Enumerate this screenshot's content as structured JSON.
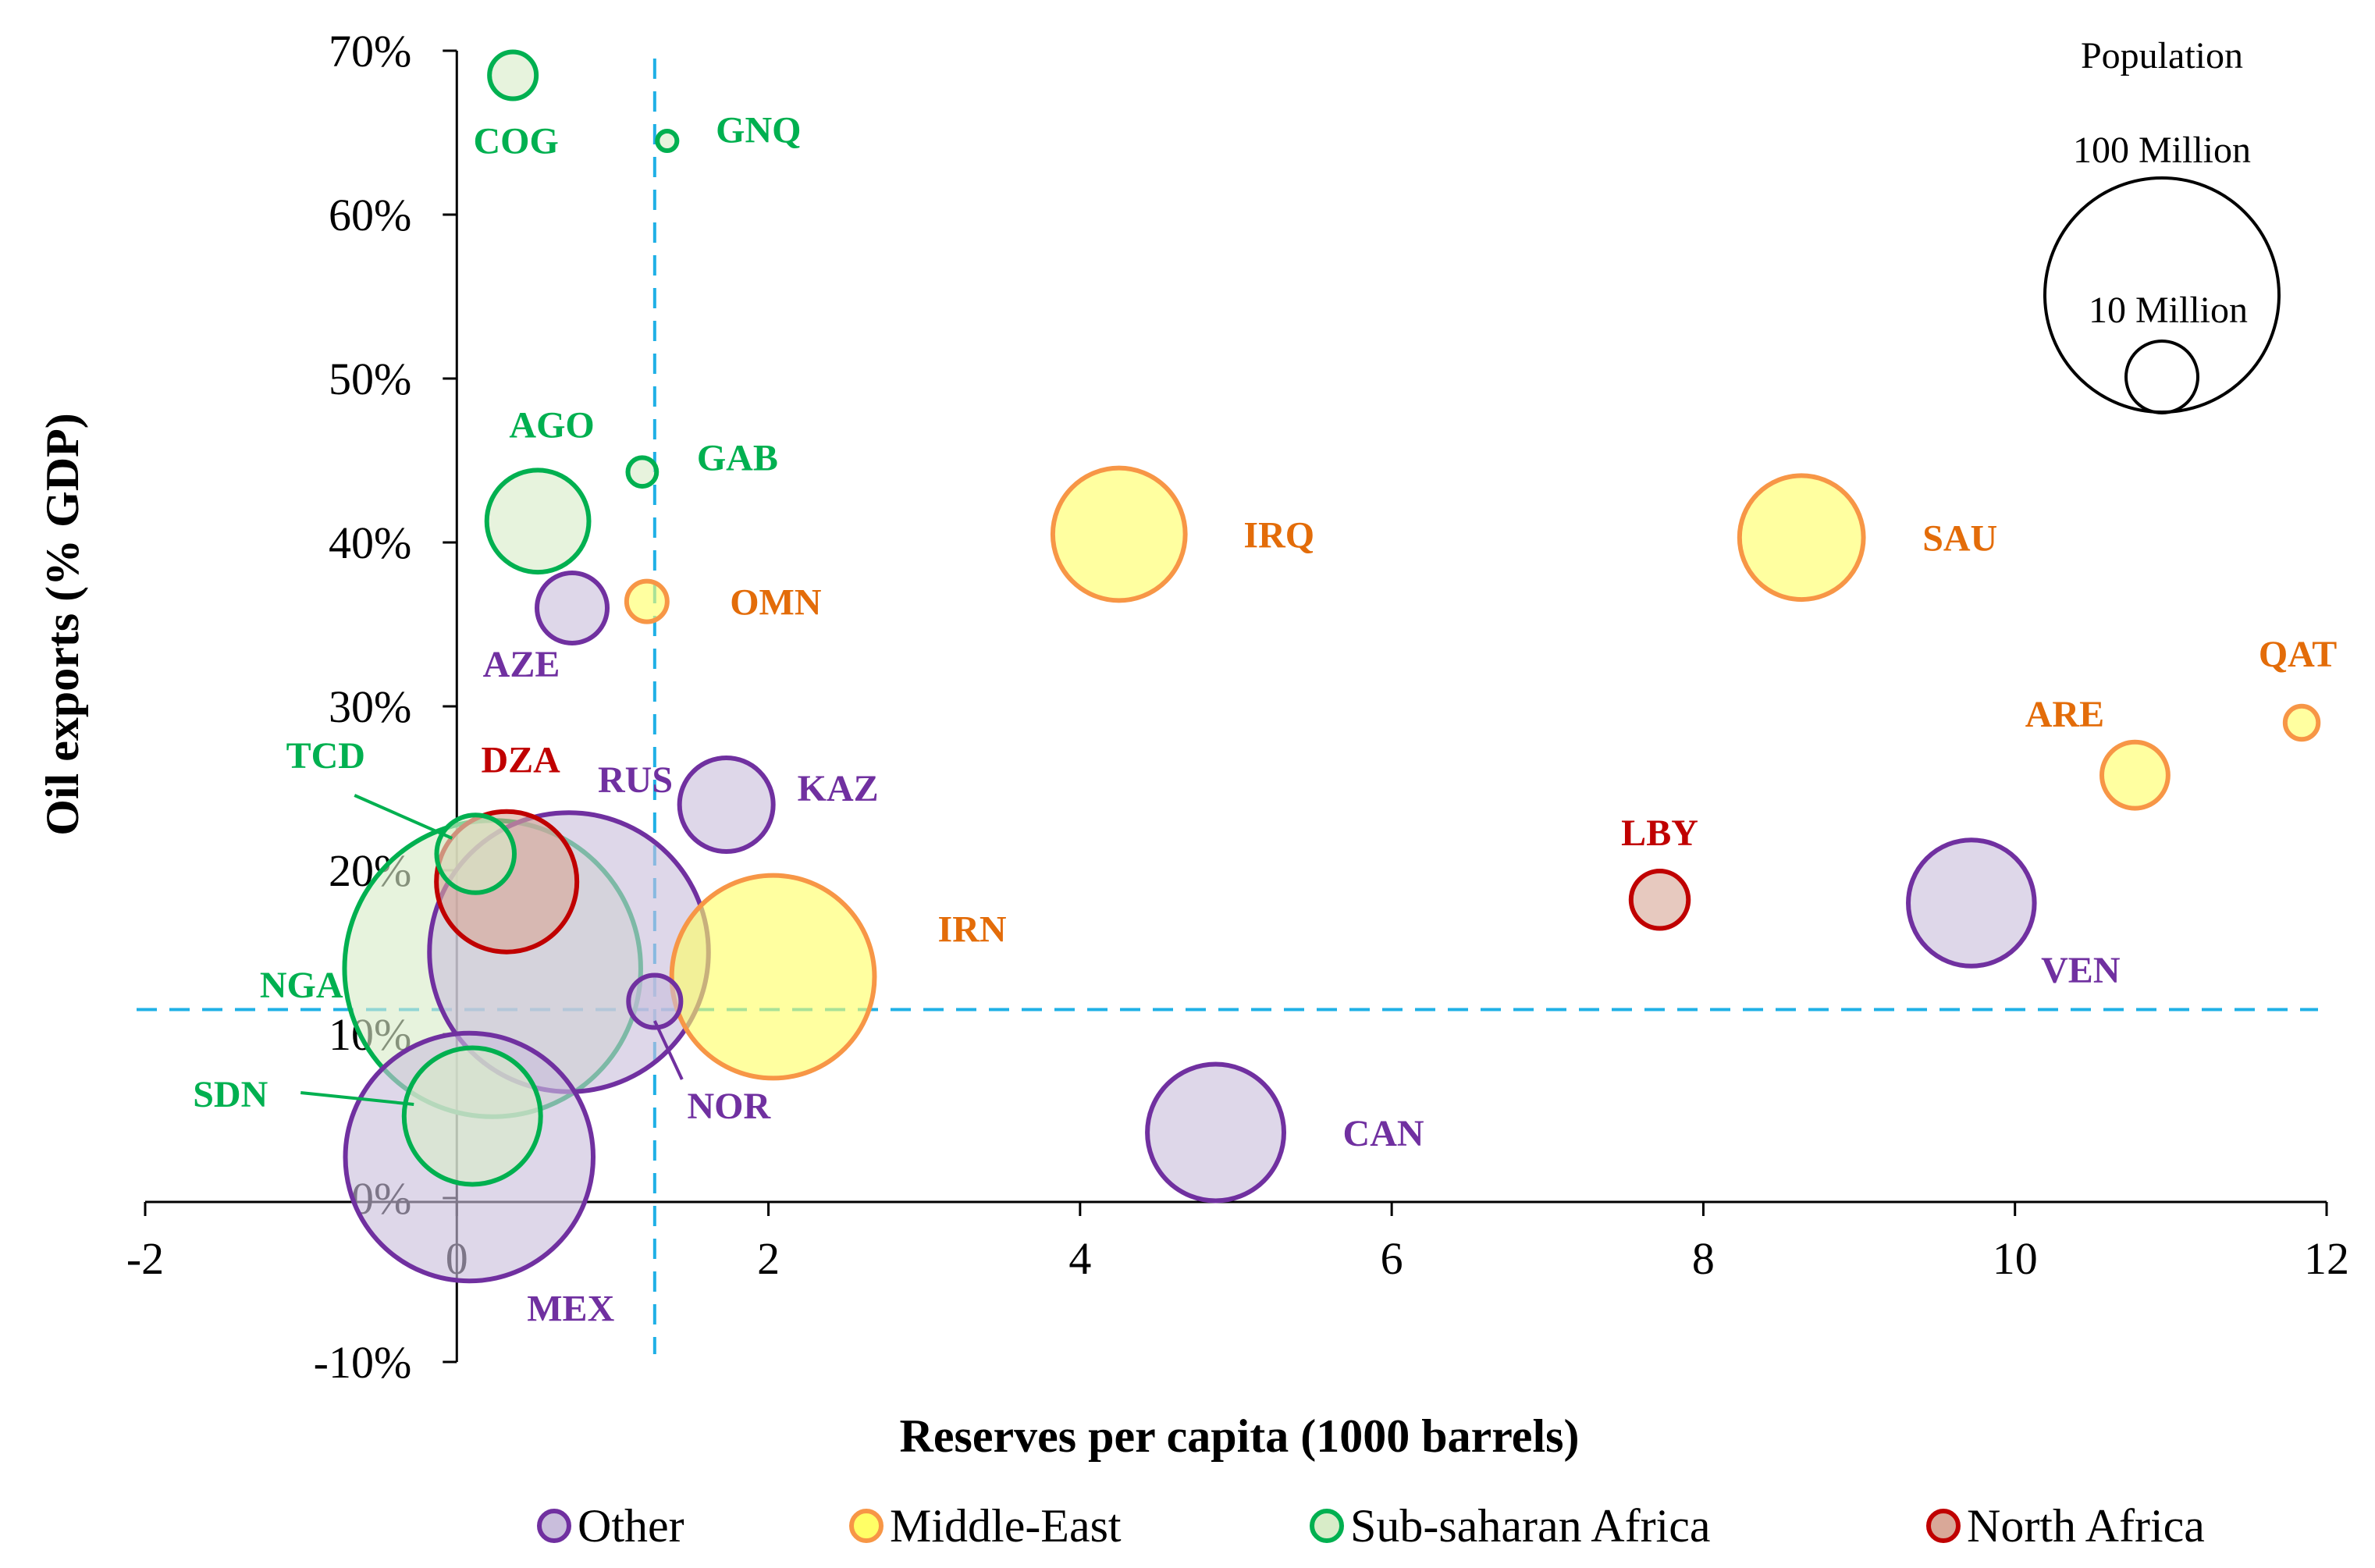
{
  "chart_data": {
    "type": "scatter",
    "subtype": "bubble",
    "title": "",
    "xlabel": "Reserves per capita (1000 barrels)",
    "ylabel": "Oil exports (% GDP)",
    "xlim": [
      -2,
      12
    ],
    "ylim": [
      -10,
      70
    ],
    "x_ticks": [
      -2,
      0,
      2,
      4,
      6,
      8,
      10,
      12
    ],
    "y_ticks": [
      -10,
      0,
      10,
      20,
      30,
      40,
      50,
      60,
      70
    ],
    "x_tick_labels": [
      "-2",
      "0",
      "2",
      "4",
      "6",
      "8",
      "10",
      "12"
    ],
    "y_tick_labels": [
      "-10%",
      "0%",
      "10%",
      "20%",
      "30%",
      "40%",
      "50%",
      "60%",
      "70%"
    ],
    "reference_lines": {
      "vertical_x": 1.27,
      "horizontal_y": 11.5,
      "style": "dashed",
      "color": "#1fb0e6"
    },
    "series": [
      {
        "name": "Other",
        "stroke": "#7030a0",
        "fill": "#c9bedc",
        "label_color": "#7030a0",
        "points": [
          {
            "label": "MEX",
            "x": 0.08,
            "y": 2.5,
            "population_m": 112
          },
          {
            "label": "RUS",
            "x": 0.72,
            "y": 15.0,
            "population_m": 142
          },
          {
            "label": "NOR",
            "x": 1.27,
            "y": 12.0,
            "population_m": 5
          },
          {
            "label": "AZE",
            "x": 0.74,
            "y": 36.0,
            "population_m": 9
          },
          {
            "label": "KAZ",
            "x": 1.73,
            "y": 24.0,
            "population_m": 16
          },
          {
            "label": "CAN",
            "x": 4.87,
            "y": 4.0,
            "population_m": 34
          },
          {
            "label": "VEN",
            "x": 9.72,
            "y": 18.0,
            "population_m": 29
          }
        ]
      },
      {
        "name": "Middle-East",
        "stroke": "#f79646",
        "fill": "#ffff66",
        "label_color": "#e36c09",
        "points": [
          {
            "label": "IRN",
            "x": 2.03,
            "y": 13.5,
            "population_m": 75
          },
          {
            "label": "IRQ",
            "x": 4.25,
            "y": 40.5,
            "population_m": 32
          },
          {
            "label": "SAU",
            "x": 8.63,
            "y": 40.3,
            "population_m": 28
          },
          {
            "label": "OMN",
            "x": 1.22,
            "y": 36.4,
            "population_m": 3
          },
          {
            "label": "ARE",
            "x": 10.77,
            "y": 25.8,
            "population_m": 8
          },
          {
            "label": "QAT",
            "x": 11.84,
            "y": 29.0,
            "population_m": 2
          }
        ]
      },
      {
        "name": "Sub-saharan Africa",
        "stroke": "#00b050",
        "fill": "#d8ecc8",
        "label_color": "#00b050",
        "points": [
          {
            "label": "NGA",
            "x": 0.23,
            "y": 14.0,
            "population_m": 160
          },
          {
            "label": "SDN",
            "x": 0.1,
            "y": 5.0,
            "population_m": 34
          },
          {
            "label": "TCD",
            "x": 0.12,
            "y": 21.0,
            "population_m": 11
          },
          {
            "label": "AGO",
            "x": 0.52,
            "y": 41.3,
            "population_m": 19
          },
          {
            "label": "COG",
            "x": 0.36,
            "y": 68.5,
            "population_m": 4
          },
          {
            "label": "GAB",
            "x": 1.19,
            "y": 44.3,
            "population_m": 1.5
          },
          {
            "label": "GNQ",
            "x": 1.35,
            "y": 64.5,
            "population_m": 0.7
          }
        ]
      },
      {
        "name": "North Africa",
        "stroke": "#c00000",
        "fill": "#d9a898",
        "label_color": "#c00000",
        "points": [
          {
            "label": "DZA",
            "x": 0.32,
            "y": 19.3,
            "population_m": 36
          },
          {
            "label": "LBY",
            "x": 7.72,
            "y": 18.2,
            "population_m": 6
          }
        ]
      }
    ],
    "size_legend": {
      "title": "Population",
      "entries": [
        "100 Million",
        "10 Million"
      ]
    },
    "legend": {
      "position": "bottom",
      "entries": [
        "Other",
        "Middle-East",
        "Sub-saharan Africa",
        "North Africa"
      ]
    }
  }
}
